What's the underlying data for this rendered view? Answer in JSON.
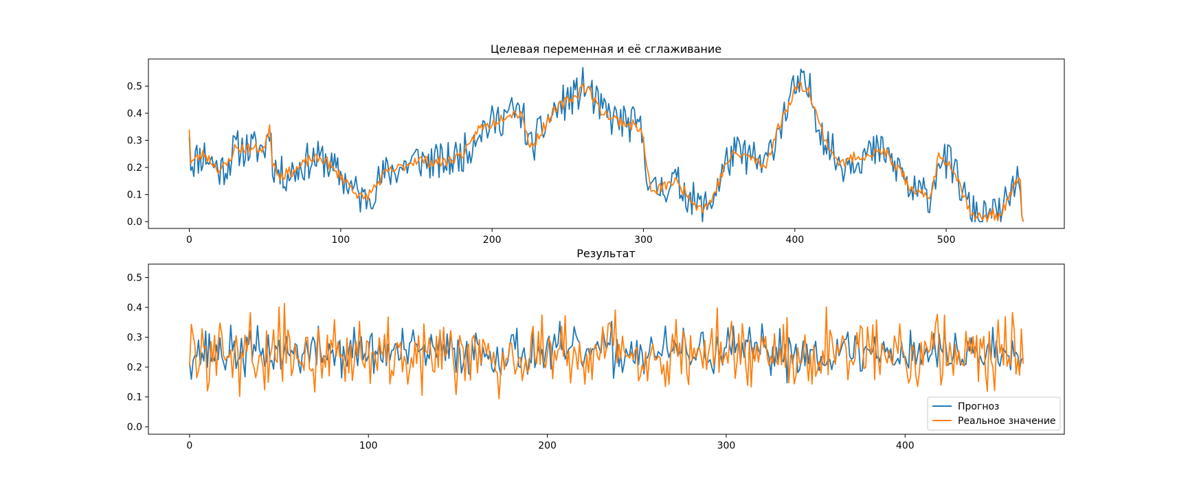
{
  "figure": {
    "background": "#ffffff"
  },
  "chart_data": [
    {
      "type": "line",
      "title": "Целевая переменная и её сглаживание",
      "xlabel": "",
      "ylabel": "",
      "xlim": [
        -27,
        578
      ],
      "ylim": [
        -0.025,
        0.6
      ],
      "xticks": [
        0,
        100,
        200,
        300,
        400,
        500
      ],
      "yticks": [
        0.0,
        0.1,
        0.2,
        0.3,
        0.4,
        0.5
      ],
      "xtick_labels": [
        "0",
        "100",
        "200",
        "300",
        "400",
        "500"
      ],
      "ytick_labels": [
        "0.0",
        "0.1",
        "0.2",
        "0.3",
        "0.4",
        "0.5"
      ],
      "grid": false,
      "n_points": 552,
      "anchors_x": [
        0,
        1,
        10,
        20,
        25,
        30,
        40,
        50,
        53,
        55,
        60,
        70,
        80,
        90,
        95,
        100,
        110,
        115,
        120,
        130,
        140,
        150,
        160,
        170,
        180,
        185,
        190,
        200,
        210,
        220,
        225,
        230,
        240,
        250,
        255,
        260,
        265,
        270,
        280,
        290,
        297,
        300,
        303,
        306,
        310,
        320,
        330,
        335,
        340,
        345,
        350,
        355,
        360,
        370,
        380,
        390,
        395,
        400,
        405,
        410,
        415,
        420,
        430,
        440,
        450,
        460,
        465,
        470,
        475,
        480,
        490,
        495,
        500,
        505,
        510,
        515,
        520,
        525,
        530,
        535,
        540,
        545,
        549,
        550,
        551
      ],
      "anchors_y": [
        0.35,
        0.22,
        0.25,
        0.19,
        0.21,
        0.27,
        0.27,
        0.27,
        0.36,
        0.22,
        0.17,
        0.19,
        0.23,
        0.23,
        0.19,
        0.17,
        0.11,
        0.08,
        0.11,
        0.18,
        0.2,
        0.23,
        0.22,
        0.22,
        0.25,
        0.27,
        0.34,
        0.36,
        0.4,
        0.4,
        0.27,
        0.31,
        0.4,
        0.45,
        0.46,
        0.5,
        0.48,
        0.42,
        0.38,
        0.36,
        0.35,
        0.3,
        0.17,
        0.1,
        0.12,
        0.15,
        0.1,
        0.06,
        0.05,
        0.08,
        0.15,
        0.22,
        0.25,
        0.24,
        0.2,
        0.36,
        0.42,
        0.49,
        0.5,
        0.48,
        0.38,
        0.3,
        0.21,
        0.24,
        0.25,
        0.26,
        0.2,
        0.2,
        0.12,
        0.1,
        0.1,
        0.24,
        0.22,
        0.2,
        0.12,
        0.05,
        0.02,
        0.01,
        0.03,
        0.02,
        0.07,
        0.13,
        0.17,
        0.02,
        0.0
      ],
      "series": [
        {
          "name": "",
          "color": "#1f77b4",
          "kind": "raw",
          "noise": 0.07,
          "seed": 11
        },
        {
          "name": "",
          "color": "#ff7f0e",
          "kind": "smoothed",
          "noise": 0.02,
          "seed": 23
        }
      ]
    },
    {
      "type": "line",
      "title": "Результат",
      "xlabel": "",
      "ylabel": "",
      "xlim": [
        -23,
        489
      ],
      "ylim": [
        -0.025,
        0.545
      ],
      "xticks": [
        0,
        100,
        200,
        300,
        400
      ],
      "yticks": [
        0.0,
        0.1,
        0.2,
        0.3,
        0.4,
        0.5
      ],
      "xtick_labels": [
        "0",
        "100",
        "200",
        "300",
        "400"
      ],
      "ytick_labels": [
        "0.0",
        "0.1",
        "0.2",
        "0.3",
        "0.4",
        "0.5"
      ],
      "grid": false,
      "legend": "lower-right",
      "n_points": 467,
      "base_level": 0.25,
      "series": [
        {
          "name": "Прогноз",
          "color": "#1f77b4",
          "amplitude": 0.075,
          "seed": 37
        },
        {
          "name": "Реальное значение",
          "color": "#ff7f0e",
          "amplitude": 0.11,
          "seed": 59
        }
      ]
    }
  ]
}
